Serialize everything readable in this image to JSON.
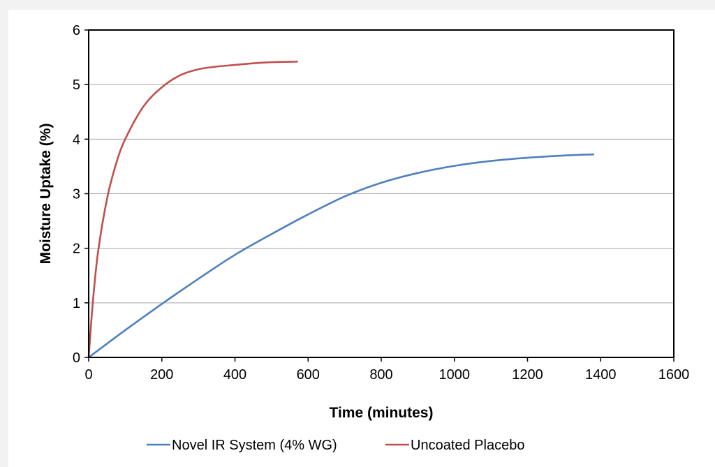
{
  "chart_data": {
    "type": "line",
    "title": "",
    "xlabel": "Time (minutes)",
    "ylabel": "Moisture Uptake (%)",
    "xlim": [
      0,
      1600
    ],
    "ylim": [
      0,
      6
    ],
    "xticks": [
      0,
      200,
      400,
      600,
      800,
      1000,
      1200,
      1400,
      1600
    ],
    "yticks": [
      0,
      1,
      2,
      3,
      4,
      5,
      6
    ],
    "grid": "horizontal",
    "legend_position": "bottom",
    "series": [
      {
        "name": "Novel IR System (4% WG)",
        "color": "#4f7fbf",
        "x": [
          0,
          100,
          200,
          300,
          400,
          500,
          600,
          700,
          800,
          900,
          1000,
          1100,
          1200,
          1300,
          1380
        ],
        "y": [
          0,
          0.5,
          0.98,
          1.44,
          1.88,
          2.26,
          2.62,
          2.95,
          3.2,
          3.38,
          3.51,
          3.6,
          3.66,
          3.7,
          3.72
        ]
      },
      {
        "name": "Uncoated Placebo",
        "color": "#c0504d",
        "x": [
          0,
          10,
          25,
          50,
          75,
          100,
          150,
          200,
          250,
          300,
          350,
          400,
          450,
          500,
          570
        ],
        "y": [
          0,
          0.9,
          1.9,
          2.9,
          3.55,
          4.0,
          4.6,
          4.95,
          5.17,
          5.28,
          5.33,
          5.36,
          5.39,
          5.41,
          5.42
        ]
      }
    ]
  }
}
